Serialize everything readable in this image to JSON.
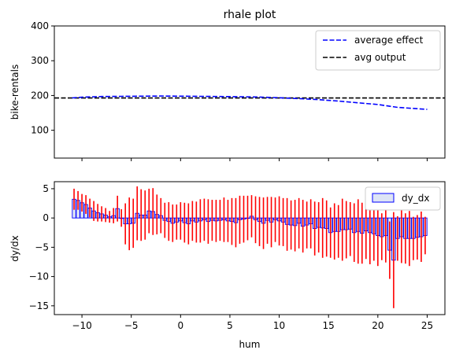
{
  "chart_data": [
    {
      "type": "line",
      "title": "rhale plot",
      "xlabel": "",
      "ylabel": "bike-rentals",
      "xlim": [
        -12.8,
        26.8
      ],
      "ylim": [
        20,
        400
      ],
      "yticks": [
        100,
        200,
        300,
        400
      ],
      "xticks": [
        -10,
        -5,
        0,
        5,
        10,
        15,
        20,
        25
      ],
      "grid": false,
      "legend_position": "top-right",
      "series": [
        {
          "name": "average effect",
          "style": "dashed",
          "color": "#0000ff",
          "x": [
            -11,
            -10,
            -8,
            -6,
            -4,
            -2,
            0,
            2,
            4,
            6,
            8,
            10,
            12,
            14,
            16,
            18,
            20,
            21,
            22,
            24,
            25
          ],
          "y": [
            193,
            195,
            197,
            197.5,
            198,
            198.5,
            198,
            197.5,
            197,
            196.5,
            195.5,
            193.5,
            191,
            188,
            184,
            179,
            174,
            170,
            166,
            162,
            160
          ]
        },
        {
          "name": "avg output",
          "style": "dashed",
          "color": "#000000",
          "hline": 193
        }
      ]
    },
    {
      "type": "bar",
      "title": "",
      "xlabel": "hum",
      "ylabel": "dy/dx",
      "xlim": [
        -12.8,
        26.8
      ],
      "ylim": [
        -16.5,
        6.2
      ],
      "yticks": [
        -15,
        -10,
        -5,
        0,
        5
      ],
      "xticks": [
        -10,
        -5,
        0,
        5,
        10,
        15,
        20,
        25
      ],
      "xtick_labels": [
        "−10",
        "−5",
        "0",
        "5",
        "10",
        "15",
        "20",
        "25"
      ],
      "ytick_labels": [
        "−15",
        "−10",
        "−5",
        "0",
        "5"
      ],
      "grid": false,
      "legend_position": "top-right",
      "bar_series": {
        "name": "dy_dx",
        "edge_color": "#0000ff",
        "face_color": "#dde4f5",
        "width": 0.36,
        "x": [
          -10.8,
          -10.4,
          -10.0,
          -9.6,
          -9.2,
          -8.8,
          -8.4,
          -8.0,
          -7.6,
          -7.2,
          -6.8,
          -6.4,
          -6.0,
          -5.6,
          -5.2,
          -4.8,
          -4.4,
          -4.0,
          -3.6,
          -3.2,
          -2.8,
          -2.4,
          -2.0,
          -1.6,
          -1.2,
          -0.8,
          -0.4,
          0.0,
          0.4,
          0.8,
          1.2,
          1.6,
          2.0,
          2.4,
          2.8,
          3.2,
          3.6,
          4.0,
          4.4,
          4.8,
          5.2,
          5.6,
          6.0,
          6.4,
          6.8,
          7.2,
          7.6,
          8.0,
          8.4,
          8.8,
          9.2,
          9.6,
          10.0,
          10.4,
          10.8,
          11.2,
          11.6,
          12.0,
          12.4,
          12.8,
          13.2,
          13.6,
          14.0,
          14.4,
          14.8,
          15.2,
          15.6,
          16.0,
          16.4,
          16.8,
          17.2,
          17.6,
          18.0,
          18.4,
          18.8,
          19.2,
          19.6,
          20.0,
          20.4,
          20.8,
          21.2,
          21.6,
          22.0,
          22.4,
          22.8,
          23.2,
          23.6,
          24.0,
          24.4,
          24.8
        ],
        "values": [
          3.2,
          3.0,
          2.6,
          2.3,
          1.7,
          1.2,
          0.9,
          0.7,
          0.5,
          0.2,
          0.4,
          1.6,
          0.0,
          -1.0,
          -1.0,
          -0.9,
          0.8,
          0.5,
          0.5,
          1.2,
          1.1,
          0.6,
          0.4,
          -0.4,
          -0.6,
          -0.9,
          -0.7,
          -0.5,
          -0.8,
          -1.0,
          -0.5,
          -0.7,
          -0.5,
          -0.3,
          -0.6,
          -0.4,
          -0.5,
          -0.4,
          -0.3,
          -0.5,
          -0.6,
          -0.8,
          -0.3,
          -0.2,
          0.0,
          0.3,
          -0.3,
          -0.6,
          -0.9,
          -0.4,
          -0.7,
          -0.3,
          -0.5,
          -0.7,
          -1.1,
          -1.2,
          -1.3,
          -0.9,
          -1.4,
          -1.2,
          -1.0,
          -1.8,
          -1.6,
          -1.7,
          -1.8,
          -2.5,
          -2.3,
          -2.3,
          -2.0,
          -2.0,
          -1.9,
          -2.5,
          -2.3,
          -2.6,
          -2.2,
          -2.5,
          -2.7,
          -3.0,
          -3.2,
          -3.0,
          -5.5,
          -7.2,
          -3.5,
          -3.2,
          -3.5,
          -3.5,
          -3.5,
          -3.3,
          -3.2,
          -3.0
        ],
        "error_color": "#ff0000",
        "errors": [
          1.8,
          1.6,
          1.5,
          1.6,
          1.6,
          1.7,
          1.5,
          1.3,
          1.2,
          1.0,
          1.3,
          2.2,
          1.5,
          3.5,
          4.5,
          4.2,
          4.6,
          4.4,
          4.2,
          3.8,
          4.0,
          3.4,
          3.0,
          3.0,
          3.3,
          3.2,
          3.0,
          3.2,
          3.4,
          3.5,
          3.4,
          3.5,
          3.7,
          3.6,
          3.8,
          3.5,
          3.6,
          3.5,
          3.8,
          3.6,
          4.0,
          4.2,
          4.1,
          4.0,
          3.8,
          3.6,
          4.0,
          4.2,
          4.4,
          4.0,
          4.3,
          3.8,
          4.2,
          4.1,
          4.5,
          4.2,
          4.4,
          4.3,
          4.5,
          4.0,
          4.2,
          4.6,
          4.3,
          5.1,
          4.8,
          4.3,
          4.8,
          4.5,
          5.3,
          4.9,
          4.6,
          5.0,
          5.5,
          5.2,
          4.8,
          5.4,
          4.6,
          5.2,
          4.0,
          4.6,
          4.9,
          8.2,
          3.8,
          4.5,
          4.3,
          4.7,
          3.7,
          3.8,
          4.3,
          3.2
        ]
      }
    }
  ]
}
